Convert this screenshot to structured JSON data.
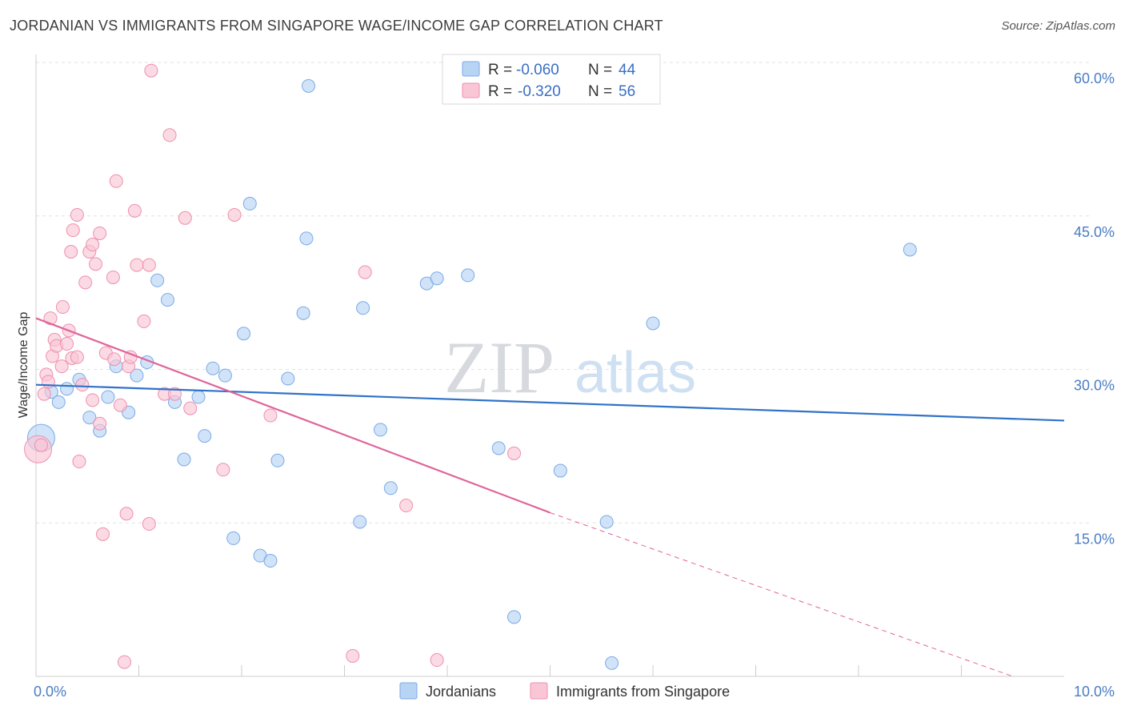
{
  "header": {
    "title": "JORDANIAN VS IMMIGRANTS FROM SINGAPORE WAGE/INCOME GAP CORRELATION CHART",
    "source": "Source: ZipAtlas.com"
  },
  "watermark": {
    "zip": "ZIP",
    "atlas": "atlas"
  },
  "legend": {
    "rows": [
      {
        "r_label": "R =",
        "r_value": "-0.060",
        "n_label": "N =",
        "n_value": "44",
        "color": "#b8d4f5",
        "stroke": "#7aaae6"
      },
      {
        "r_label": "R =",
        "r_value": "-0.320",
        "n_label": "N =",
        "n_value": "56",
        "color": "#f9c6d6",
        "stroke": "#ee8fb0"
      }
    ]
  },
  "bottom_legend": {
    "items": [
      {
        "label": "Jordanians",
        "color": "#b8d4f5",
        "stroke": "#7aaae6"
      },
      {
        "label": "Immigrants from Singapore",
        "color": "#f9c6d6",
        "stroke": "#ee8fb0"
      }
    ]
  },
  "chart_data": {
    "type": "scatter",
    "title": "JORDANIAN VS IMMIGRANTS FROM SINGAPORE WAGE/INCOME GAP CORRELATION CHART",
    "xlabel": "",
    "ylabel": "Wage/Income Gap",
    "xlim": [
      0,
      10
    ],
    "ylim": [
      0,
      60
    ],
    "x_tick_labels": [
      "0.0%",
      "10.0%"
    ],
    "y_ticks": [
      15,
      30,
      45,
      60
    ],
    "y_tick_labels": [
      "15.0%",
      "30.0%",
      "45.0%",
      "60.0%"
    ],
    "grid": true,
    "series": [
      {
        "name": "Jordanians",
        "color": "#b8d4f5",
        "stroke": "#7aaae6",
        "line_color": "#2f72c8",
        "trend": {
          "x": [
            0,
            10
          ],
          "y": [
            28.5,
            25.0
          ],
          "dashed_from": null
        },
        "points": [
          [
            0.05,
            23.3,
            "big"
          ],
          [
            0.15,
            27.8
          ],
          [
            0.22,
            26.8
          ],
          [
            0.3,
            28.1
          ],
          [
            0.42,
            29.0
          ],
          [
            0.52,
            25.3
          ],
          [
            0.62,
            24.0
          ],
          [
            0.7,
            27.3
          ],
          [
            0.78,
            30.3
          ],
          [
            0.9,
            25.8
          ],
          [
            0.98,
            29.4
          ],
          [
            1.08,
            30.7
          ],
          [
            1.18,
            38.7
          ],
          [
            1.28,
            36.8
          ],
          [
            1.35,
            26.8
          ],
          [
            1.44,
            21.2
          ],
          [
            1.58,
            27.3
          ],
          [
            1.64,
            23.5
          ],
          [
            1.72,
            30.1
          ],
          [
            1.84,
            29.4
          ],
          [
            1.92,
            13.5
          ],
          [
            2.02,
            33.5
          ],
          [
            2.08,
            46.2
          ],
          [
            2.18,
            11.8
          ],
          [
            2.28,
            11.3
          ],
          [
            2.35,
            21.1
          ],
          [
            2.45,
            29.1
          ],
          [
            2.6,
            35.5
          ],
          [
            2.65,
            57.7
          ],
          [
            2.63,
            42.8
          ],
          [
            3.18,
            36.0
          ],
          [
            3.15,
            15.1
          ],
          [
            3.35,
            24.1
          ],
          [
            3.45,
            18.4
          ],
          [
            3.8,
            38.4
          ],
          [
            3.9,
            38.9
          ],
          [
            4.2,
            39.2
          ],
          [
            4.5,
            22.3
          ],
          [
            4.65,
            5.8
          ],
          [
            5.1,
            20.1
          ],
          [
            5.55,
            15.1
          ],
          [
            5.6,
            1.3
          ],
          [
            6.0,
            34.5
          ],
          [
            8.5,
            41.7
          ]
        ]
      },
      {
        "name": "Immigrants from Singapore",
        "color": "#f9c6d6",
        "stroke": "#ee8fb0",
        "line_color": "#e0649a",
        "trend": {
          "x": [
            0,
            5
          ],
          "y": [
            35.0,
            16.0
          ],
          "dashed_x": [
            5,
            9.5
          ],
          "dashed_y": [
            16.0,
            -1.1
          ]
        },
        "points": [
          [
            0.02,
            22.2,
            "big"
          ],
          [
            0.05,
            22.6
          ],
          [
            0.08,
            27.6
          ],
          [
            0.1,
            29.5
          ],
          [
            0.12,
            28.8
          ],
          [
            0.14,
            35.0
          ],
          [
            0.16,
            31.3
          ],
          [
            0.18,
            32.9
          ],
          [
            0.2,
            32.3
          ],
          [
            0.25,
            30.3
          ],
          [
            0.26,
            36.1
          ],
          [
            0.3,
            32.5
          ],
          [
            0.32,
            33.8
          ],
          [
            0.35,
            31.1
          ],
          [
            0.4,
            31.2
          ],
          [
            0.42,
            21.0
          ],
          [
            0.45,
            28.5
          ],
          [
            0.4,
            45.1
          ],
          [
            0.36,
            43.6
          ],
          [
            0.34,
            41.5
          ],
          [
            0.48,
            38.5
          ],
          [
            0.52,
            41.5
          ],
          [
            0.55,
            42.2
          ],
          [
            0.55,
            27.0
          ],
          [
            0.58,
            40.3
          ],
          [
            0.62,
            43.3
          ],
          [
            0.62,
            24.7
          ],
          [
            0.65,
            13.9
          ],
          [
            0.68,
            31.6
          ],
          [
            0.75,
            39.0
          ],
          [
            0.76,
            31.0
          ],
          [
            0.78,
            48.4
          ],
          [
            0.82,
            26.5
          ],
          [
            0.86,
            1.4
          ],
          [
            0.88,
            15.9
          ],
          [
            0.9,
            30.3
          ],
          [
            0.92,
            31.2
          ],
          [
            0.96,
            45.5
          ],
          [
            0.98,
            40.2
          ],
          [
            1.05,
            34.7
          ],
          [
            1.1,
            40.2
          ],
          [
            1.1,
            14.9
          ],
          [
            1.12,
            59.2
          ],
          [
            1.25,
            27.6
          ],
          [
            1.3,
            52.9
          ],
          [
            1.35,
            27.6
          ],
          [
            1.45,
            44.8
          ],
          [
            1.5,
            26.2
          ],
          [
            1.82,
            20.2
          ],
          [
            1.93,
            45.1
          ],
          [
            2.28,
            25.5
          ],
          [
            3.08,
            2.0
          ],
          [
            3.2,
            39.5
          ],
          [
            3.6,
            16.7
          ],
          [
            3.9,
            1.6
          ],
          [
            4.65,
            21.8
          ]
        ]
      }
    ]
  }
}
